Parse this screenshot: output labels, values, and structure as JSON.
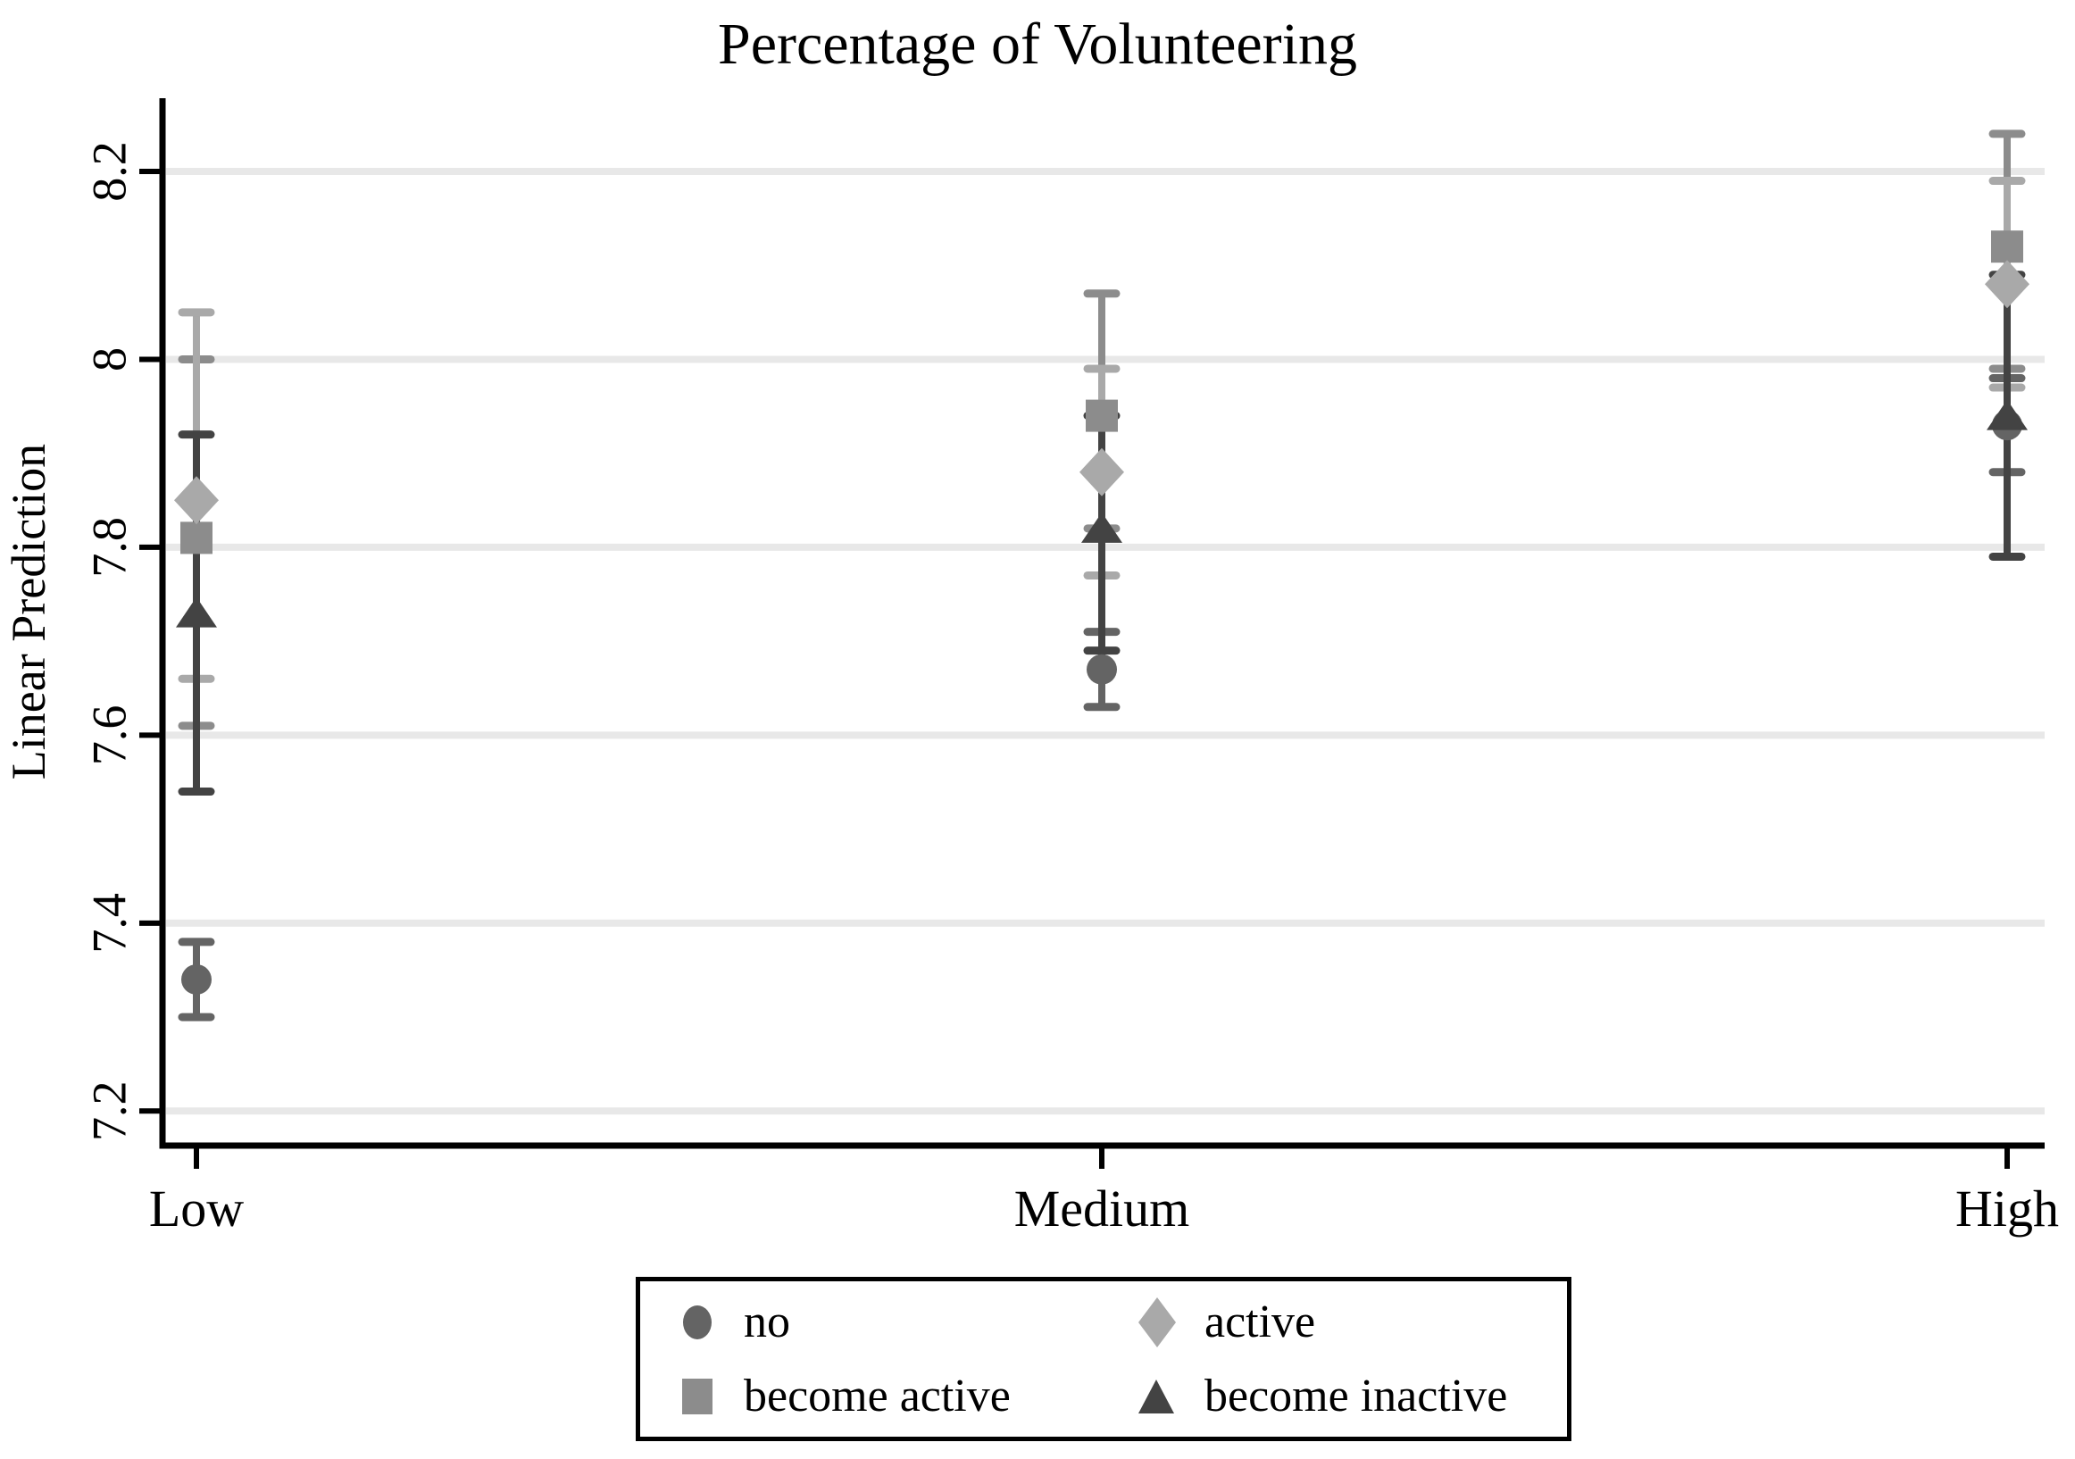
{
  "title": "Percentage of Volunteering",
  "chart_data": {
    "type": "scatter",
    "title": "Percentage of Volunteering",
    "xlabel": "",
    "ylabel": "Linear Prediction",
    "categories": [
      "Low",
      "Medium",
      "High"
    ],
    "y_ticks": [
      7.2,
      7.4,
      7.6,
      7.8,
      8,
      8.2
    ],
    "y_tick_labels": [
      "7.2",
      "7.4",
      "7.6",
      "7.8",
      "8",
      "8.2"
    ],
    "ylim": [
      7.16,
      8.28
    ],
    "grid": true,
    "gridline_color": "#e8e8e8",
    "axis_color": "#000000",
    "legend_position": "bottom-center",
    "error_bars": true,
    "series": [
      {
        "name": "no",
        "marker": "circle",
        "color": "#646464",
        "values": [
          7.34,
          7.67,
          7.93
        ],
        "ci_low": [
          7.3,
          7.63,
          7.88
        ],
        "ci_high": [
          7.38,
          7.71,
          7.98
        ]
      },
      {
        "name": "become active",
        "marker": "square",
        "color": "#8c8c8c",
        "values": [
          7.81,
          7.94,
          8.12
        ],
        "ci_low": [
          7.61,
          7.82,
          7.99
        ],
        "ci_high": [
          8.0,
          8.07,
          8.24
        ]
      },
      {
        "name": "become inactive",
        "marker": "triangle",
        "color": "#434343",
        "values": [
          7.73,
          7.82,
          7.94
        ],
        "ci_low": [
          7.54,
          7.69,
          7.79
        ],
        "ci_high": [
          7.92,
          7.94,
          8.09
        ]
      },
      {
        "name": "active",
        "marker": "diamond",
        "color": "#a9a9a9",
        "values": [
          7.85,
          7.88,
          8.08
        ],
        "ci_low": [
          7.66,
          7.77,
          7.97
        ],
        "ci_high": [
          8.05,
          7.99,
          8.19
        ]
      }
    ]
  }
}
